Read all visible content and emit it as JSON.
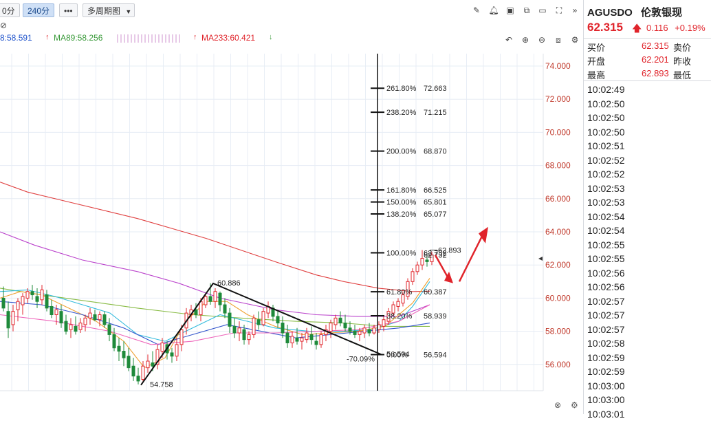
{
  "toolbar": {
    "period_partial": "0分",
    "period_active": "240分",
    "more_label": "•••",
    "multi_period": "多周期图"
  },
  "ma_legend": {
    "ma_first": "8:58.591",
    "ma89": "MA89:58.256",
    "ma233": "MA233:60.421",
    "colors": {
      "ma89": "#3a9a3a",
      "ma233": "#e0242b"
    }
  },
  "quote": {
    "symbol": "AGUSDO",
    "name": "伦敦银现",
    "price": "62.315",
    "change": "0.116",
    "change_pct": "+0.19%",
    "rows": [
      {
        "label": "买价",
        "value": "62.315",
        "label2": "卖价"
      },
      {
        "label": "开盘",
        "value": "62.201",
        "label2": "昨收"
      },
      {
        "label": "最高",
        "value": "62.893",
        "label2": "最低"
      }
    ],
    "ticks": [
      "10:02:49",
      "10:02:50",
      "10:02:50",
      "10:02:50",
      "10:02:51",
      "10:02:52",
      "10:02:52",
      "10:02:53",
      "10:02:53",
      "10:02:54",
      "10:02:54",
      "10:02:55",
      "10:02:55",
      "10:02:56",
      "10:02:56",
      "10:02:57",
      "10:02:57",
      "10:02:57",
      "10:02:58",
      "10:02:59",
      "10:02:59",
      "10:03:00",
      "10:03:00",
      "10:03:01"
    ]
  },
  "chart_data": {
    "type": "candlestick",
    "ylim": [
      54.5,
      75.5
    ],
    "y_ticks": [
      "74.000",
      "72.000",
      "70.000",
      "68.000",
      "66.000",
      "64.000",
      "62.000",
      "60.000",
      "58.000",
      "56.000"
    ],
    "fib_levels": [
      {
        "pct": "261.80%",
        "value": "72.663"
      },
      {
        "pct": "238.20%",
        "value": "71.215"
      },
      {
        "pct": "200.00%",
        "value": "68.870"
      },
      {
        "pct": "161.80%",
        "value": "66.525"
      },
      {
        "pct": "150.00%",
        "value": "65.801"
      },
      {
        "pct": "138.20%",
        "value": "65.077"
      },
      {
        "pct": "100.00%",
        "value": "62.732"
      },
      {
        "pct": "61.80%",
        "value": "60.387"
      },
      {
        "pct": "38.20%",
        "value": "58.939"
      },
      {
        "pct": "0.00%",
        "value": "56.594"
      }
    ],
    "zigzag": [
      {
        "x": 205,
        "y": 54.758,
        "label": "54.758"
      },
      {
        "x": 310,
        "y": 60.886,
        "label": "60.886"
      },
      {
        "x": 555,
        "y": 56.594,
        "label": "56.594"
      }
    ],
    "annotations": {
      "low_label": "54.758",
      "peak_label": "60.886",
      "neg_pct": "-70.09%",
      "bottom_label": "56.594",
      "high_label": "62.893",
      "last_label": "62.732"
    },
    "series": [
      {
        "name": "MA233",
        "color": "#e04040",
        "points": [
          [
            0,
            67.0
          ],
          [
            40,
            66.4
          ],
          [
            100,
            65.8
          ],
          [
            200,
            64.8
          ],
          [
            300,
            63.6
          ],
          [
            400,
            62.2
          ],
          [
            460,
            61.4
          ],
          [
            500,
            61.0
          ],
          [
            550,
            60.6
          ],
          [
            600,
            60.4
          ],
          [
            625,
            60.42
          ]
        ]
      },
      {
        "name": "MA89",
        "color": "#bb44cc",
        "points": [
          [
            0,
            64.0
          ],
          [
            50,
            63.2
          ],
          [
            120,
            62.3
          ],
          [
            200,
            61.6
          ],
          [
            260,
            60.9
          ],
          [
            320,
            60.0
          ],
          [
            400,
            59.3
          ],
          [
            460,
            59.0
          ],
          [
            520,
            58.9
          ],
          [
            580,
            58.9
          ],
          [
            625,
            59.6
          ]
        ]
      },
      {
        "name": "MA_green",
        "color": "#88bb44",
        "points": [
          [
            0,
            60.6
          ],
          [
            60,
            60.2
          ],
          [
            130,
            59.8
          ],
          [
            200,
            59.4
          ],
          [
            280,
            59.0
          ],
          [
            350,
            58.8
          ],
          [
            430,
            58.6
          ],
          [
            500,
            58.5
          ],
          [
            560,
            58.3
          ],
          [
            625,
            58.3
          ]
        ]
      },
      {
        "name": "MA_cyan",
        "color": "#33bbdd",
        "points": [
          [
            0,
            60.4
          ],
          [
            40,
            60.5
          ],
          [
            80,
            60.1
          ],
          [
            120,
            59.6
          ],
          [
            160,
            59.1
          ],
          [
            200,
            57.8
          ],
          [
            240,
            57.4
          ],
          [
            280,
            58.2
          ],
          [
            320,
            59.0
          ],
          [
            360,
            58.6
          ],
          [
            400,
            58.2
          ],
          [
            450,
            58.0
          ],
          [
            500,
            58.0
          ],
          [
            540,
            58.1
          ],
          [
            580,
            58.6
          ],
          [
            600,
            59.5
          ],
          [
            625,
            61.0
          ]
        ]
      },
      {
        "name": "MA_orange",
        "color": "#f0a030",
        "points": [
          [
            0,
            60.0
          ],
          [
            30,
            60.4
          ],
          [
            60,
            60.2
          ],
          [
            100,
            59.4
          ],
          [
            140,
            58.6
          ],
          [
            180,
            57.4
          ],
          [
            210,
            55.8
          ],
          [
            240,
            56.4
          ],
          [
            270,
            58.6
          ],
          [
            300,
            59.8
          ],
          [
            330,
            59.8
          ],
          [
            360,
            59.0
          ],
          [
            400,
            58.3
          ],
          [
            440,
            57.8
          ],
          [
            480,
            57.9
          ],
          [
            520,
            58.0
          ],
          [
            560,
            58.3
          ],
          [
            600,
            59.7
          ],
          [
            625,
            61.2
          ]
        ]
      },
      {
        "name": "MA_blue",
        "color": "#3355cc",
        "points": [
          [
            0,
            59.8
          ],
          [
            60,
            59.6
          ],
          [
            120,
            59.0
          ],
          [
            180,
            58.2
          ],
          [
            230,
            57.2
          ],
          [
            280,
            57.8
          ],
          [
            330,
            58.4
          ],
          [
            380,
            58.0
          ],
          [
            430,
            57.6
          ],
          [
            480,
            57.8
          ],
          [
            530,
            58.0
          ],
          [
            580,
            58.2
          ],
          [
            625,
            58.5
          ]
        ]
      },
      {
        "name": "MA_pink",
        "color": "#ee66bb",
        "points": [
          [
            0,
            59.0
          ],
          [
            80,
            58.6
          ],
          [
            160,
            58.0
          ],
          [
            220,
            57.2
          ],
          [
            280,
            57.4
          ],
          [
            340,
            57.9
          ],
          [
            400,
            57.9
          ],
          [
            460,
            58.0
          ],
          [
            520,
            58.1
          ],
          [
            580,
            58.6
          ],
          [
            625,
            59.6
          ]
        ]
      }
    ],
    "candles": [
      [
        5,
        60.7,
        59.2,
        60.0,
        59.4
      ],
      [
        12,
        59.8,
        57.6,
        59.2,
        58.2
      ],
      [
        19,
        59.6,
        58.0,
        58.4,
        59.2
      ],
      [
        26,
        60.0,
        58.6,
        59.3,
        59.8
      ],
      [
        33,
        60.3,
        59.0,
        59.6,
        60.1
      ],
      [
        40,
        60.6,
        59.7,
        60.0,
        60.4
      ],
      [
        47,
        60.8,
        59.9,
        60.4,
        60.2
      ],
      [
        54,
        60.6,
        59.4,
        60.1,
        59.8
      ],
      [
        61,
        60.8,
        59.6,
        59.9,
        60.5
      ],
      [
        68,
        60.5,
        59.2,
        60.2,
        59.4
      ],
      [
        75,
        59.9,
        58.8,
        59.5,
        59.0
      ],
      [
        82,
        59.6,
        58.4,
        59.0,
        59.3
      ],
      [
        89,
        59.6,
        58.2,
        59.2,
        58.5
      ],
      [
        96,
        59.0,
        57.8,
        58.6,
        58.0
      ],
      [
        103,
        58.8,
        57.6,
        58.1,
        58.4
      ],
      [
        110,
        58.9,
        57.8,
        58.3,
        58.0
      ],
      [
        117,
        58.8,
        57.9,
        58.1,
        58.5
      ],
      [
        124,
        59.0,
        58.0,
        58.4,
        58.8
      ],
      [
        131,
        59.4,
        58.4,
        58.8,
        59.1
      ],
      [
        138,
        59.3,
        58.6,
        59.0,
        58.7
      ],
      [
        145,
        59.2,
        58.3,
        58.7,
        59.0
      ],
      [
        152,
        59.2,
        58.2,
        59.0,
        58.4
      ],
      [
        159,
        58.8,
        57.4,
        58.4,
        57.8
      ],
      [
        166,
        58.2,
        56.8,
        57.8,
        57.0
      ],
      [
        173,
        57.6,
        56.2,
        57.1,
        56.8
      ],
      [
        180,
        57.4,
        55.9,
        56.8,
        56.4
      ],
      [
        187,
        57.0,
        55.6,
        56.5,
        55.8
      ],
      [
        194,
        56.4,
        55.0,
        55.9,
        55.3
      ],
      [
        201,
        55.8,
        54.8,
        55.3,
        55.0
      ],
      [
        208,
        56.2,
        54.9,
        55.1,
        55.9
      ],
      [
        215,
        56.6,
        55.5,
        55.8,
        56.2
      ],
      [
        222,
        56.8,
        55.6,
        56.1,
        55.9
      ],
      [
        229,
        57.2,
        55.7,
        56.0,
        56.9
      ],
      [
        236,
        57.6,
        56.4,
        56.8,
        57.3
      ],
      [
        243,
        57.4,
        56.3,
        57.2,
        56.7
      ],
      [
        250,
        57.0,
        56.1,
        56.7,
        56.5
      ],
      [
        257,
        57.6,
        56.2,
        56.5,
        57.2
      ],
      [
        264,
        58.4,
        56.8,
        57.2,
        58.1
      ],
      [
        271,
        59.4,
        57.8,
        58.2,
        59.1
      ],
      [
        278,
        59.6,
        58.6,
        59.0,
        59.3
      ],
      [
        285,
        59.7,
        58.8,
        59.3,
        59.0
      ],
      [
        292,
        60.0,
        58.6,
        59.0,
        59.8
      ],
      [
        299,
        60.3,
        59.4,
        59.6,
        60.1
      ],
      [
        306,
        60.9,
        59.6,
        60.1,
        59.8
      ],
      [
        313,
        60.6,
        59.4,
        59.8,
        60.4
      ],
      [
        320,
        60.4,
        59.2,
        60.3,
        59.6
      ],
      [
        327,
        60.0,
        58.8,
        59.6,
        59.1
      ],
      [
        334,
        59.4,
        57.9,
        59.1,
        58.3
      ],
      [
        341,
        58.8,
        57.6,
        58.3,
        57.9
      ],
      [
        348,
        58.6,
        57.4,
        57.9,
        58.2
      ],
      [
        355,
        58.4,
        57.2,
        58.1,
        57.5
      ],
      [
        362,
        58.0,
        57.2,
        57.5,
        57.8
      ],
      [
        369,
        59.0,
        57.6,
        57.8,
        58.8
      ],
      [
        376,
        59.2,
        58.1,
        58.7,
        58.4
      ],
      [
        383,
        59.4,
        58.3,
        58.4,
        59.2
      ],
      [
        390,
        59.8,
        58.8,
        59.1,
        59.5
      ],
      [
        397,
        59.6,
        58.6,
        59.4,
        58.9
      ],
      [
        404,
        59.2,
        58.2,
        58.9,
        58.5
      ],
      [
        411,
        58.9,
        57.6,
        58.5,
        57.9
      ],
      [
        418,
        58.4,
        57.0,
        57.9,
        57.3
      ],
      [
        425,
        58.0,
        57.0,
        57.3,
        57.7
      ],
      [
        432,
        58.2,
        57.2,
        57.6,
        57.4
      ],
      [
        439,
        57.9,
        56.9,
        57.4,
        57.6
      ],
      [
        446,
        58.2,
        57.3,
        57.5,
        57.9
      ],
      [
        453,
        58.3,
        57.2,
        57.8,
        57.5
      ],
      [
        460,
        57.9,
        56.9,
        57.4,
        57.2
      ],
      [
        467,
        58.0,
        57.0,
        57.2,
        57.8
      ],
      [
        474,
        58.4,
        57.4,
        57.8,
        58.1
      ],
      [
        481,
        58.7,
        57.6,
        58.0,
        58.5
      ],
      [
        488,
        59.0,
        58.1,
        58.4,
        58.8
      ],
      [
        495,
        59.2,
        58.3,
        58.8,
        58.5
      ],
      [
        502,
        59.0,
        58.0,
        58.5,
        58.2
      ],
      [
        509,
        58.6,
        57.8,
        58.2,
        58.0
      ],
      [
        516,
        58.4,
        57.6,
        58.0,
        57.8
      ],
      [
        523,
        58.2,
        57.4,
        57.8,
        58.0
      ],
      [
        530,
        58.4,
        57.6,
        57.9,
        58.2
      ],
      [
        537,
        58.5,
        57.7,
        58.1,
        57.9
      ],
      [
        544,
        58.4,
        57.8,
        57.9,
        58.2
      ],
      [
        551,
        58.6,
        57.9,
        58.1,
        58.4
      ],
      [
        558,
        58.9,
        58.0,
        58.3,
        58.7
      ],
      [
        565,
        59.4,
        58.4,
        58.6,
        59.2
      ],
      [
        572,
        59.8,
        58.9,
        59.1,
        59.6
      ],
      [
        579,
        60.0,
        59.2,
        59.5,
        59.8
      ],
      [
        586,
        60.4,
        59.5,
        59.7,
        60.2
      ],
      [
        593,
        61.2,
        59.9,
        60.1,
        61.0
      ],
      [
        600,
        61.8,
        60.8,
        61.0,
        61.6
      ],
      [
        607,
        62.2,
        61.4,
        61.6,
        62.0
      ],
      [
        614,
        62.9,
        61.7,
        62.0,
        62.4
      ],
      [
        621,
        62.7,
        61.9,
        62.3,
        62.2
      ],
      [
        628,
        62.8,
        62.0,
        62.2,
        62.6
      ]
    ]
  }
}
